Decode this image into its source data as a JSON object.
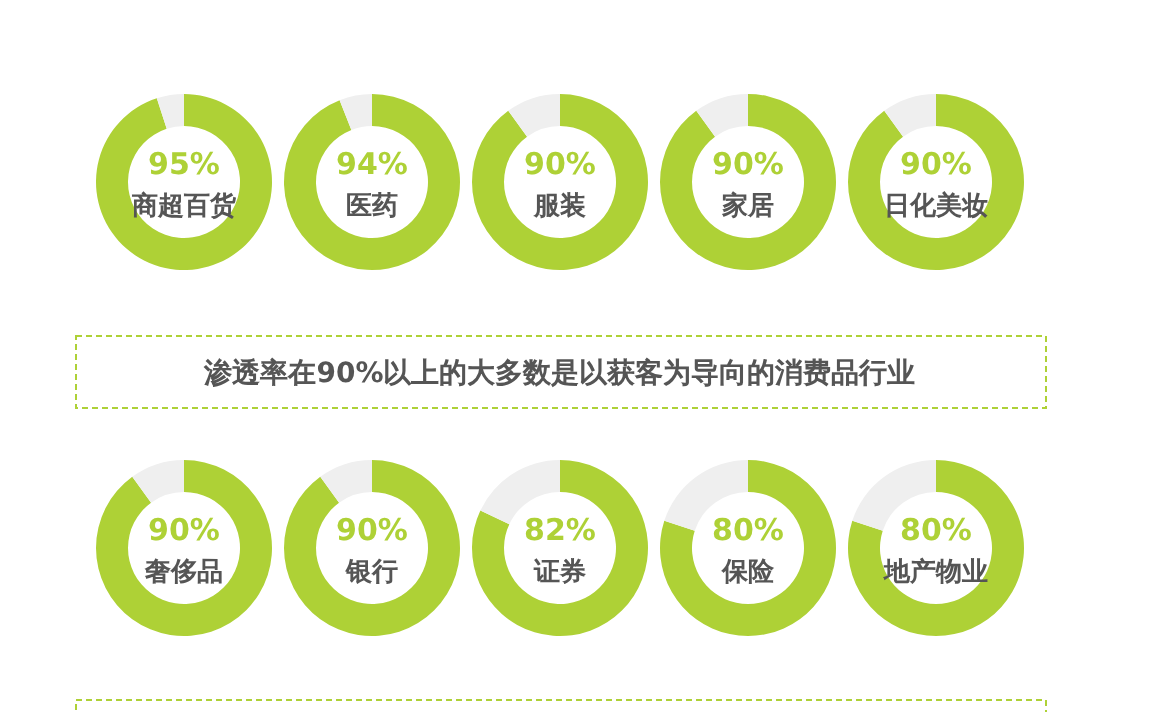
{
  "chart_data": [
    {
      "type": "donut",
      "categories": [
        "商超百货",
        null
      ],
      "values": [
        95,
        5
      ],
      "colors": [
        "#aed136",
        "#efefef"
      ],
      "value_labels": [
        "95%",
        null
      ]
    },
    {
      "type": "donut",
      "categories": [
        "医药",
        null
      ],
      "values": [
        94,
        6
      ],
      "colors": [
        "#aed136",
        "#efefef"
      ],
      "value_labels": [
        "94%",
        null
      ]
    },
    {
      "type": "donut",
      "categories": [
        "服装",
        null
      ],
      "values": [
        90,
        10
      ],
      "colors": [
        "#aed136",
        "#efefef"
      ],
      "value_labels": [
        "90%",
        null
      ]
    },
    {
      "type": "donut",
      "categories": [
        "家居",
        null
      ],
      "values": [
        90,
        10
      ],
      "colors": [
        "#aed136",
        "#efefef"
      ],
      "value_labels": [
        "90%",
        null
      ]
    },
    {
      "type": "donut",
      "categories": [
        "日化美妆",
        null
      ],
      "values": [
        90,
        10
      ],
      "colors": [
        "#aed136",
        "#efefef"
      ],
      "value_labels": [
        "90%",
        null
      ]
    },
    {
      "type": "other",
      "title": "渗透率在90%以上的大多数是以获客为导向的消费品行业"
    },
    {
      "type": "donut",
      "categories": [
        "奢侈品",
        null
      ],
      "values": [
        90,
        10
      ],
      "colors": [
        "#aed136",
        "#efefef"
      ],
      "value_labels": [
        "90%",
        null
      ]
    },
    {
      "type": "donut",
      "categories": [
        "银行",
        null
      ],
      "values": [
        90,
        10
      ],
      "colors": [
        "#aed136",
        "#efefef"
      ],
      "value_labels": [
        "90%",
        null
      ]
    },
    {
      "type": "donut",
      "categories": [
        "证券",
        null
      ],
      "values": [
        82,
        18
      ],
      "colors": [
        "#aed136",
        "#efefef"
      ],
      "value_labels": [
        "82%",
        null
      ]
    },
    {
      "type": "donut",
      "categories": [
        "保险",
        null
      ],
      "values": [
        80,
        20
      ],
      "colors": [
        "#aed136",
        "#efefef"
      ],
      "value_labels": [
        "80%",
        null
      ]
    },
    {
      "type": "donut",
      "categories": [
        "地产物业",
        null
      ],
      "values": [
        80,
        20
      ],
      "colors": [
        "#aed136",
        "#efefef"
      ],
      "value_labels": [
        "80%",
        null
      ]
    }
  ]
}
